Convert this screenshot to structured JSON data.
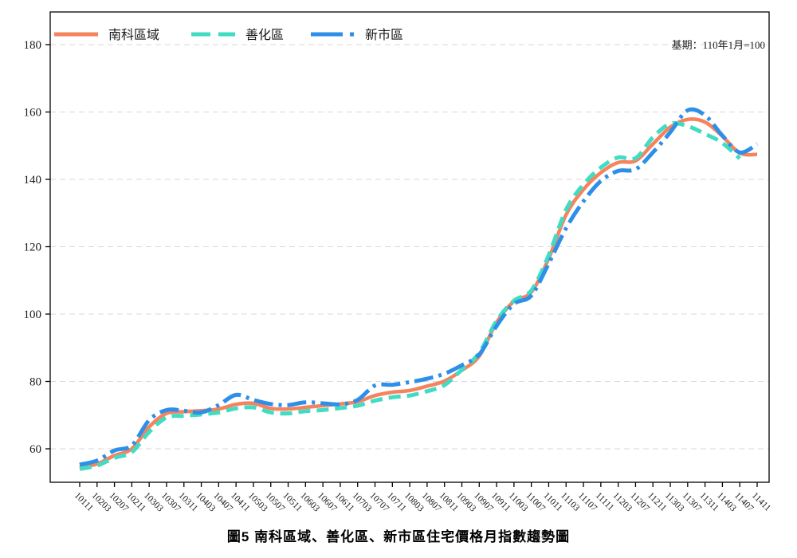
{
  "chart_data": {
    "type": "line",
    "title": "圖5 南科區域、善化區、新市區住宅價格月指數趨勢圖",
    "base_note": "基期：110年1月=100",
    "ylim": [
      50,
      190
    ],
    "yticks": [
      60,
      80,
      100,
      120,
      140,
      160,
      180
    ],
    "grid": "horizontal-dashed",
    "grid_color": "#d9d9d9",
    "axis_color": "#000000",
    "legend_position": "top-left-inside",
    "x_labels": [
      "10111",
      "10203",
      "10207",
      "10211",
      "10303",
      "10307",
      "10311",
      "10403",
      "10407",
      "10411",
      "10503",
      "10507",
      "10511",
      "10603",
      "10607",
      "10611",
      "10703",
      "10707",
      "10711",
      "10803",
      "10807",
      "10811",
      "10903",
      "10907",
      "10911",
      "11003",
      "11007",
      "11011",
      "11103",
      "11107",
      "11111",
      "11203",
      "11207",
      "11211",
      "11303",
      "11307",
      "11311",
      "11403",
      "11407",
      "11411"
    ],
    "series": [
      {
        "name": "南科區域",
        "color": "#F5835D",
        "style": "solid",
        "values": [
          54.5,
          55.5,
          58,
          60,
          66.5,
          70.5,
          71,
          71.3,
          71.8,
          73.2,
          73.5,
          72,
          71.8,
          72.3,
          72.8,
          73.3,
          74,
          75.8,
          76.8,
          77.3,
          78.6,
          80.1,
          83.3,
          87.5,
          97.5,
          103.8,
          106.5,
          116.5,
          129.5,
          137,
          142,
          145,
          145.5,
          150.5,
          155.5,
          157.8,
          157,
          152.8,
          147.8,
          147.4
        ]
      },
      {
        "name": "善化區",
        "color": "#41DCC3",
        "style": "dashed",
        "values": [
          54,
          55,
          57.3,
          59,
          65,
          69.3,
          69.8,
          70.2,
          70.8,
          72,
          72.3,
          70.8,
          70.5,
          71.2,
          71.5,
          72.1,
          72.8,
          74.3,
          75.3,
          75.8,
          77.1,
          78.9,
          83.5,
          88.5,
          98,
          104,
          107,
          117.5,
          131,
          138.5,
          143.5,
          146.5,
          146.3,
          152.5,
          156.5,
          155.8,
          153.5,
          150.8,
          146.2,
          null
        ]
      },
      {
        "name": "新市區",
        "color": "#2D8FE8",
        "style": "dashdot",
        "values": [
          55.3,
          56.5,
          59.5,
          61,
          68.5,
          71.5,
          71.3,
          70.8,
          73,
          76,
          74.5,
          73.3,
          73,
          73.8,
          73.5,
          73.2,
          74.5,
          78.8,
          79,
          79.8,
          80.8,
          82.3,
          84.8,
          88,
          96.5,
          103,
          105.5,
          115,
          125.5,
          133.5,
          139.5,
          142.5,
          143,
          148,
          154,
          160.5,
          159,
          153,
          148,
          150.5
        ]
      }
    ]
  }
}
